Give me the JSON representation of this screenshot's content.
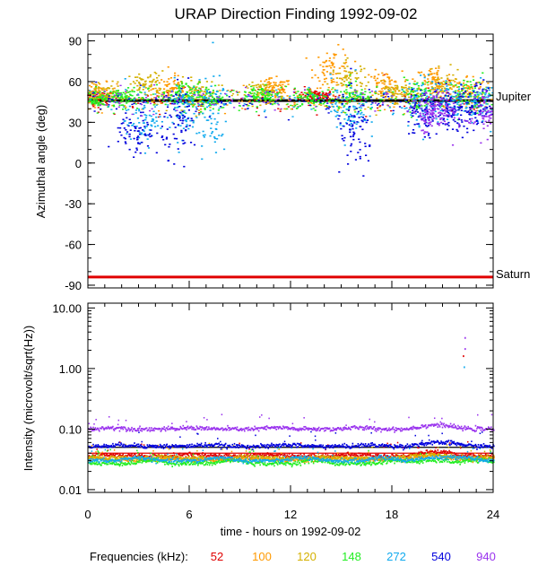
{
  "chart_data": [
    {
      "type": "scatter",
      "title": "URAP Direction Finding  1992-09-02",
      "ylabel": "Azimuthal angle (deg)",
      "xlim": [
        0,
        24
      ],
      "ylim": [
        -92,
        95
      ],
      "yticks": [
        90,
        60,
        30,
        0,
        -30,
        -60,
        -90
      ],
      "ytick_labels": [
        "90",
        "60",
        "30",
        "0",
        "-30",
        "-60",
        "-90"
      ],
      "reference_lines": [
        {
          "name": "Jupiter",
          "y": 46,
          "color": "#000000"
        },
        {
          "name": "Saturn",
          "y": -84,
          "color": "#e00000"
        }
      ],
      "series": [
        {
          "name": "52",
          "clusters": [
            [
              0.5,
              48,
              4
            ],
            [
              13.5,
              50,
              3
            ]
          ]
        },
        {
          "name": "100",
          "clusters": [
            [
              0.6,
              52,
              6
            ],
            [
              5.0,
              55,
              8
            ],
            [
              11,
              55,
              6
            ],
            [
              14.5,
              70,
              12
            ],
            [
              17.5,
              58,
              8
            ],
            [
              20.5,
              60,
              10
            ],
            [
              22.5,
              55,
              8
            ]
          ]
        },
        {
          "name": "120",
          "clusters": [
            [
              1.0,
              50,
              8
            ],
            [
              3.5,
              58,
              8
            ],
            [
              6.5,
              50,
              10
            ],
            [
              10.5,
              52,
              6
            ],
            [
              15.5,
              60,
              12
            ],
            [
              18.2,
              52,
              6
            ],
            [
              21.0,
              55,
              10
            ]
          ]
        },
        {
          "name": "148",
          "clusters": [
            [
              0.5,
              48,
              5
            ],
            [
              2.0,
              48,
              6
            ],
            [
              5.5,
              50,
              8
            ],
            [
              7.0,
              48,
              8
            ],
            [
              10.3,
              50,
              6
            ],
            [
              13.3,
              48,
              6
            ],
            [
              15.8,
              50,
              10
            ],
            [
              19.5,
              50,
              10
            ],
            [
              22.5,
              50,
              10
            ]
          ]
        },
        {
          "name": "272",
          "clusters": [
            [
              3.3,
              30,
              15
            ],
            [
              5.5,
              40,
              18
            ],
            [
              7.2,
              35,
              25
            ],
            [
              15.5,
              40,
              20
            ],
            [
              19.8,
              45,
              15
            ],
            [
              21.5,
              45,
              12
            ],
            [
              23.5,
              45,
              12
            ]
          ]
        },
        {
          "name": "540",
          "clusters": [
            [
              2.8,
              20,
              15
            ],
            [
              5.5,
              30,
              20
            ],
            [
              15.8,
              20,
              25
            ],
            [
              19.8,
              35,
              15
            ],
            [
              21.5,
              40,
              12
            ],
            [
              23.0,
              40,
              15
            ]
          ]
        },
        {
          "name": "940",
          "clusters": [
            [
              20.2,
              35,
              12
            ],
            [
              21.0,
              40,
              10
            ],
            [
              23.5,
              35,
              12
            ]
          ]
        }
      ]
    },
    {
      "type": "line",
      "ylabel": "Intensity (microvolt/sqrt(Hz))",
      "xlabel": "time - hours on 1992-09-02",
      "xlim": [
        0,
        24
      ],
      "xticks": [
        0,
        6,
        12,
        18,
        24
      ],
      "xtick_labels": [
        "0",
        "6",
        "12",
        "18",
        "24"
      ],
      "yscale": "log",
      "ylim": [
        0.009,
        12
      ],
      "yticks": [
        10,
        1,
        0.1,
        0.01
      ],
      "ytick_labels": [
        "10.00",
        "1.00",
        "0.10",
        "0.01"
      ],
      "reference_lines": [
        {
          "y": 0.05,
          "color": "#000000"
        },
        {
          "y": 0.04,
          "color": "#e00000"
        }
      ],
      "series": [
        {
          "name": "52",
          "base": 0.036
        },
        {
          "name": "100",
          "base": 0.031
        },
        {
          "name": "120",
          "base": 0.033
        },
        {
          "name": "148",
          "base": 0.027
        },
        {
          "name": "272",
          "base": 0.03
        },
        {
          "name": "540",
          "base": 0.052
        },
        {
          "name": "940",
          "base": 0.1
        }
      ],
      "outliers": [
        {
          "name": "940",
          "x": 22.3,
          "y": 3.2
        },
        {
          "name": "940",
          "x": 22.3,
          "y": 2.1
        },
        {
          "name": "52",
          "x": 22.2,
          "y": 1.6
        },
        {
          "name": "272",
          "x": 22.25,
          "y": 1.05
        }
      ]
    }
  ],
  "legend": {
    "label": "Frequencies (kHz):",
    "items": [
      {
        "name": "52",
        "color": "#e00000"
      },
      {
        "name": "100",
        "color": "#ff9900"
      },
      {
        "name": "120",
        "color": "#d4b000"
      },
      {
        "name": "148",
        "color": "#22ee22"
      },
      {
        "name": "272",
        "color": "#11aaee"
      },
      {
        "name": "540",
        "color": "#0000dd"
      },
      {
        "name": "940",
        "color": "#9a33ee"
      }
    ]
  }
}
